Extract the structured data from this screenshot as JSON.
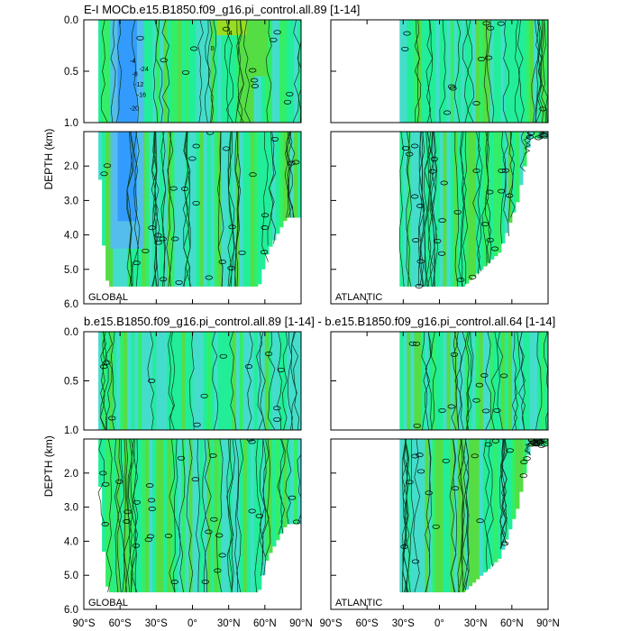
{
  "chart_data": [
    {
      "type": "contour",
      "title": "E-I MOCb.e15.B1850.f09_g16.pi_control.all.89 [1-14]",
      "ylabel": "DEPTH (km)",
      "xlabel": "",
      "ylim": [
        0,
        6
      ],
      "panels": [
        {
          "basin": "GLOBAL",
          "xlim": [
            -90,
            90
          ],
          "ocean_extent": [
            {
              "lat": -78,
              "bottom_km": 1.0
            },
            {
              "lat": -75,
              "bottom_km": 3.8
            },
            {
              "lat": -70,
              "bottom_km": 5.5
            },
            {
              "lat": 55,
              "bottom_km": 5.5
            },
            {
              "lat": 62,
              "bottom_km": 4.5
            },
            {
              "lat": 70,
              "bottom_km": 4.0
            },
            {
              "lat": 78,
              "bottom_km": 3.5
            },
            {
              "lat": 90,
              "bottom_km": 3.5
            }
          ],
          "contour_labels": [
            "-4",
            "-8",
            "-12",
            "-16",
            "-20",
            "-24",
            "4",
            "0"
          ],
          "features": [
            {
              "name": "antarctic-cell-minimum",
              "lat": -55,
              "depth_km": 0.5,
              "value": -24
            },
            {
              "name": "northern-maximum",
              "lat": 30,
              "depth_km": 0.1,
              "value": 4
            }
          ]
        },
        {
          "basin": "ATLANTIC",
          "xlim": [
            -90,
            90
          ],
          "ocean_extent": [
            {
              "lat": -33,
              "bottom_km": 5.5
            },
            {
              "lat": 20,
              "bottom_km": 5.5
            },
            {
              "lat": 35,
              "bottom_km": 5.0
            },
            {
              "lat": 50,
              "bottom_km": 4.5
            },
            {
              "lat": 65,
              "bottom_km": 3.0
            },
            {
              "lat": 75,
              "bottom_km": 1.2
            },
            {
              "lat": 90,
              "bottom_km": 1.2
            }
          ],
          "contour_labels": [
            "0"
          ],
          "features": []
        }
      ]
    },
    {
      "type": "contour",
      "title": "b.e15.B1850.f09_g16.pi_control.all.89 [1-14] - b.e15.B1850.f09_g16.pi_control.all.64 [1-14]",
      "ylabel": "DEPTH (km)",
      "xlabel": "",
      "ylim": [
        0,
        6
      ],
      "panels": [
        {
          "basin": "GLOBAL",
          "xlim": [
            -90,
            90
          ],
          "ocean_extent": [
            {
              "lat": -78,
              "bottom_km": 1.0
            },
            {
              "lat": -75,
              "bottom_km": 3.8
            },
            {
              "lat": -70,
              "bottom_km": 5.5
            },
            {
              "lat": 55,
              "bottom_km": 5.5
            },
            {
              "lat": 62,
              "bottom_km": 4.5
            },
            {
              "lat": 70,
              "bottom_km": 4.0
            },
            {
              "lat": 78,
              "bottom_km": 3.5
            },
            {
              "lat": 90,
              "bottom_km": 3.5
            }
          ],
          "contour_labels": [
            "0"
          ],
          "features": []
        },
        {
          "basin": "ATLANTIC",
          "xlim": [
            -90,
            90
          ],
          "ocean_extent": [
            {
              "lat": -33,
              "bottom_km": 5.5
            },
            {
              "lat": 20,
              "bottom_km": 5.5
            },
            {
              "lat": 35,
              "bottom_km": 5.0
            },
            {
              "lat": 50,
              "bottom_km": 4.5
            },
            {
              "lat": 65,
              "bottom_km": 3.0
            },
            {
              "lat": 75,
              "bottom_km": 1.2
            },
            {
              "lat": 90,
              "bottom_km": 1.2
            }
          ],
          "contour_labels": [
            "0"
          ],
          "features": []
        }
      ]
    }
  ],
  "axes": {
    "upper_yticks": [
      {
        "value": 0.0,
        "label": "0.0"
      },
      {
        "value": 0.5,
        "label": "0.5"
      },
      {
        "value": 1.0,
        "label": "1.0"
      }
    ],
    "lower_yticks": [
      {
        "value": 2.0,
        "label": "2.0"
      },
      {
        "value": 3.0,
        "label": "3.0"
      },
      {
        "value": 4.0,
        "label": "4.0"
      },
      {
        "value": 5.0,
        "label": "5.0"
      },
      {
        "value": 6.0,
        "label": "6.0"
      }
    ],
    "xticks": [
      {
        "value": -90,
        "label": "90°S"
      },
      {
        "value": -60,
        "label": "60°S"
      },
      {
        "value": -30,
        "label": "30°S"
      },
      {
        "value": 0,
        "label": "0°"
      },
      {
        "value": 30,
        "label": "30°N"
      },
      {
        "value": 60,
        "label": "60°N"
      },
      {
        "value": 90,
        "label": "90°N"
      }
    ]
  },
  "colors": {
    "strong_negative": "#3399ff",
    "negative": "#55bbee",
    "weak_negative": "#44ddcc",
    "near_zero": "#22ee99",
    "weak_positive": "#33ee66",
    "positive": "#55dd44",
    "strong_positive": "#99dd22",
    "contour_line": "#0a3a1a"
  }
}
